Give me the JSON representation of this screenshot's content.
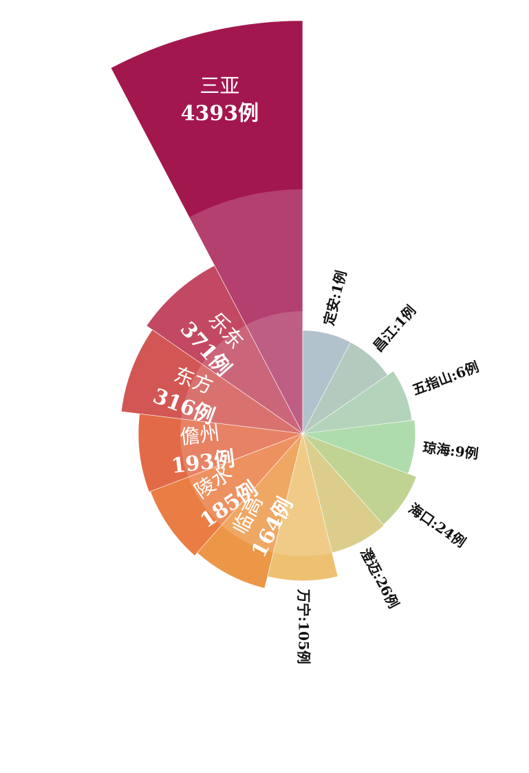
{
  "chart_data": {
    "type": "pie",
    "variant": "nightingale-rose",
    "unit": "例",
    "slices": [
      {
        "name": "三亚",
        "value": 4393,
        "color": "#a3174f",
        "label": "三亚",
        "value_label": "4393例",
        "label_style": "inside"
      },
      {
        "name": "乐东",
        "value": 371,
        "color": "#b5223f",
        "label": "乐东",
        "value_label": "371例",
        "label_style": "inside"
      },
      {
        "name": "东方",
        "value": 316,
        "color": "#c9332f",
        "label": "东方",
        "value_label": "316例",
        "label_style": "inside"
      },
      {
        "name": "儋州",
        "value": 193,
        "color": "#dd4a1f",
        "label": "儋州",
        "value_label": "193例",
        "label_style": "inside"
      },
      {
        "name": "陵水",
        "value": 185,
        "color": "#e6611a",
        "label": "陵水",
        "value_label": "185例",
        "label_style": "inside"
      },
      {
        "name": "临高",
        "value": 164,
        "color": "#e8801f",
        "label": "临高",
        "value_label": "164例",
        "label_style": "inside"
      },
      {
        "name": "万宁",
        "value": 105,
        "color": "#ebb452",
        "label": "万宁:105例",
        "label_style": "outside"
      },
      {
        "name": "澄迈",
        "value": 26,
        "color": "#cbb95a",
        "label": "澄迈:26例",
        "label_style": "outside"
      },
      {
        "name": "海口",
        "value": 24,
        "color": "#a4c063",
        "label": "海口:24例",
        "label_style": "outside"
      },
      {
        "name": "琼海",
        "value": 9,
        "color": "#8cce88",
        "label": "琼海:9例",
        "label_style": "outside"
      },
      {
        "name": "五指山",
        "value": 6,
        "color": "#92c19b",
        "label": "五指山:6例",
        "label_style": "outside"
      },
      {
        "name": "昌江",
        "value": 1,
        "color": "#93b2a2",
        "label": "昌江:1例",
        "label_style": "outside"
      },
      {
        "name": "定安",
        "value": 1,
        "color": "#90a8b7",
        "label": "定安:1例",
        "label_style": "outside"
      }
    ]
  }
}
